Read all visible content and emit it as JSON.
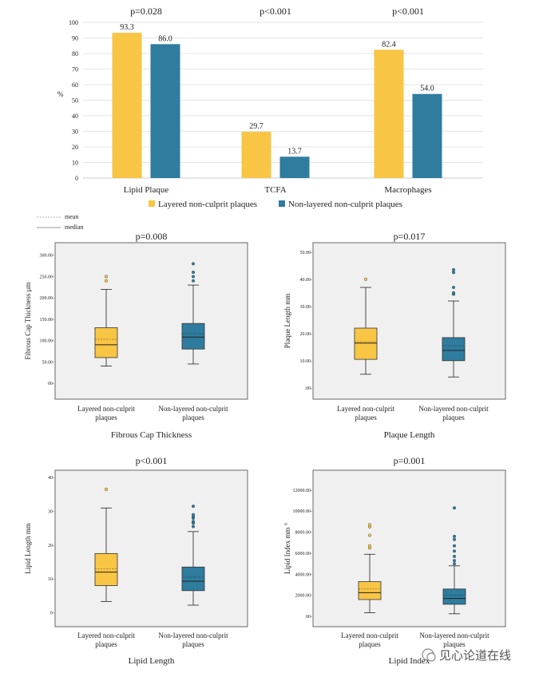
{
  "colors": {
    "layered": "#F8C545",
    "nonlayered": "#2F7C9E",
    "panel_bg": "#F0F0F0",
    "axis": "#555555",
    "grid": "#DDDDDD"
  },
  "watermark": "见心论道在线",
  "chart_data": [
    {
      "type": "bar",
      "ylabel": "%",
      "ylim": [
        0,
        100
      ],
      "yticks": [
        0,
        10,
        20,
        30,
        40,
        50,
        60,
        70,
        80,
        90,
        100
      ],
      "categories": [
        "Lipid Plaque",
        "TCFA",
        "Macrophages"
      ],
      "pvalues": [
        "p=0.028",
        "p<0.001",
        "p<0.001"
      ],
      "series": [
        {
          "name": "Layered non-culprit plaques",
          "values": [
            93.3,
            29.7,
            82.4
          ],
          "labels": [
            "93.3",
            "29.7",
            "82.4"
          ]
        },
        {
          "name": "Non-layered non-culprit plaques",
          "values": [
            86.0,
            13.7,
            54.0
          ],
          "labels": [
            "86.0",
            "13.7",
            "54.0"
          ]
        }
      ],
      "legend_position": "bottom",
      "grid": true
    },
    {
      "type": "box",
      "title": "Fibrous Cap Thickness",
      "pvalue": "p=0.008",
      "ylabel": "Fibrous Cap Thickness μm",
      "ylim": [
        -30,
        320
      ],
      "yticks": [
        0,
        50,
        100,
        150,
        200,
        250,
        300
      ],
      "yticklabels": [
        "00-",
        "50.00-",
        "100.00-",
        "150.00-",
        "200.00-",
        "250.00-",
        "300.00-"
      ],
      "groups": [
        {
          "name1": "Layered non-culprit",
          "name2": "plaques",
          "min": 40,
          "q1": 60,
          "median": 90,
          "mean": 103,
          "q3": 130,
          "max": 220,
          "outliers": [
            240,
            250
          ]
        },
        {
          "name1": "Non-layered non-culprit",
          "name2": "plaques",
          "min": 45,
          "q1": 80,
          "median": 108,
          "mean": 116,
          "q3": 140,
          "max": 230,
          "outliers": [
            240,
            250,
            260,
            280
          ]
        }
      ]
    },
    {
      "type": "box",
      "title": "Plaque Length",
      "pvalue": "p=0.017",
      "ylabel": "Plaque Length mm",
      "ylim": [
        -3,
        52
      ],
      "yticks": [
        0,
        10,
        20,
        30,
        40,
        50
      ],
      "yticklabels": [
        ".00-",
        "10.00-",
        "20.00-",
        "30.00-",
        "40.00-",
        "50.00-"
      ],
      "groups": [
        {
          "name1": "Layered non-culprit",
          "name2": "plaques",
          "min": 5,
          "q1": 10.5,
          "median": 16.5,
          "mean": 17,
          "q3": 22,
          "max": 37,
          "outliers": [
            40
          ]
        },
        {
          "name1": "Non-layered non-culprit",
          "name2": "plaques",
          "min": 4,
          "q1": 10,
          "median": 13.8,
          "mean": 15.5,
          "q3": 18.5,
          "max": 32,
          "outliers": [
            34.5,
            35,
            37,
            42.5,
            43.5
          ]
        }
      ]
    },
    {
      "type": "box",
      "title": "Lipid Length",
      "pvalue": "p<0.001",
      "ylabel": "Lipid Length mm",
      "ylim": [
        -3,
        41
      ],
      "yticks": [
        0,
        10,
        20,
        30,
        40
      ],
      "yticklabels": [
        "0-",
        "10-",
        "20-",
        "30-",
        "40-"
      ],
      "groups": [
        {
          "name1": "Layered non-culprit",
          "name2": "plaques",
          "min": 3.3,
          "q1": 8,
          "median": 12,
          "mean": 13,
          "q3": 17.5,
          "max": 31,
          "outliers": [
            36.5
          ]
        },
        {
          "name1": "Non-layered non-culprit",
          "name2": "plaques",
          "min": 2.2,
          "q1": 6.5,
          "median": 9.3,
          "mean": 10.5,
          "q3": 13.5,
          "max": 24,
          "outliers": [
            25.5,
            26.5,
            27,
            28,
            28.5,
            29,
            31.5
          ]
        }
      ]
    },
    {
      "type": "box",
      "title": "Lipid Index",
      "pvalue": "p=0.001",
      "ylabel": "Lipid Index mm °",
      "ylim": [
        -600,
        13500
      ],
      "yticks": [
        0,
        2000,
        4000,
        6000,
        8000,
        10000,
        12000
      ],
      "yticklabels": [
        "00-",
        "2000.00-",
        "4000.00-",
        "6000.00-",
        "8000.00-",
        "10000.00-",
        "12000.00-"
      ],
      "groups": [
        {
          "name1": "Layered non-culprit",
          "name2": "plaques",
          "min": 350,
          "q1": 1600,
          "median": 2250,
          "mean": 2600,
          "q3": 3300,
          "max": 5900,
          "outliers": [
            6500,
            6700,
            7700,
            8500,
            8700
          ]
        },
        {
          "name1": "Non-layered non-culprit",
          "name2": "plaques",
          "min": 250,
          "q1": 1150,
          "median": 1700,
          "mean": 2000,
          "q3": 2600,
          "max": 4800,
          "outliers": [
            5000,
            5300,
            5700,
            6200,
            6700,
            7300,
            7600,
            10300
          ]
        }
      ]
    }
  ],
  "boxlegend": {
    "mean": "mean",
    "median": "median"
  }
}
